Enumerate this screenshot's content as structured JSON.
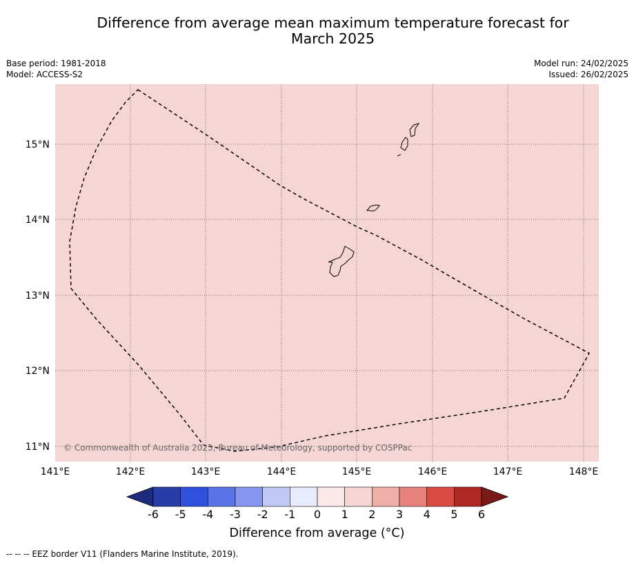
{
  "title_line1": "Difference from average mean maximum temperature forecast for",
  "title_line2": "March 2025",
  "base_period": "Base period: 1981-2018",
  "model": "Model: ACCESS-S2",
  "model_run": "Model run: 24/02/2025",
  "issued": "Issued: 26/02/2025",
  "map": {
    "fill_color": "#f5d6d4",
    "lat_labels": [
      "15°N",
      "14°N",
      "13°N",
      "12°N",
      "11°N"
    ],
    "lon_labels": [
      "141°E",
      "142°E",
      "143°E",
      "144°E",
      "145°E",
      "146°E",
      "147°E",
      "148°E"
    ],
    "copyright": "© Commonwealth of Australia 2025, Bureau of Meteorology, supported by COSPPac"
  },
  "colorbar": {
    "title": "Difference from average (°C)",
    "ticks": [
      "-6",
      "-5",
      "-4",
      "-3",
      "-2",
      "-1",
      "0",
      "1",
      "2",
      "3",
      "4",
      "5",
      "6"
    ],
    "colors": [
      "#1e2a80",
      "#283ca8",
      "#3050dc",
      "#5a73e6",
      "#8796ee",
      "#c2c8f4",
      "#e8ebfb",
      "#fbe9e8",
      "#f5d6d4",
      "#efaeaa",
      "#e8827c",
      "#d84a42",
      "#b02a24",
      "#7a1a18"
    ]
  },
  "footnote": "--  --  -- EEZ border V11 (Flanders Marine Institute, 2019)."
}
